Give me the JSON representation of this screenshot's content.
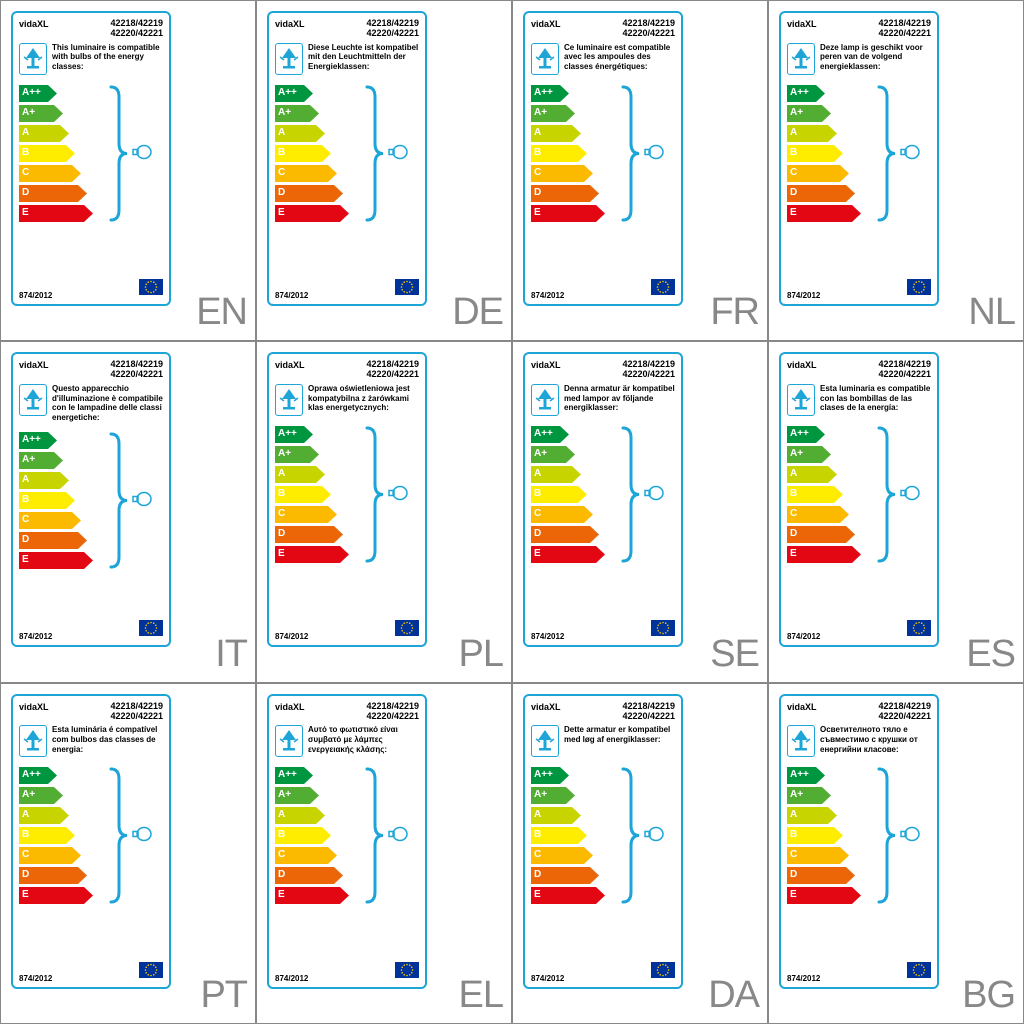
{
  "brand": "vidaXL",
  "product_codes": [
    "42218/42219",
    "42220/42221"
  ],
  "regulation": "874/2012",
  "border_color": "#1ea5d8",
  "lang_color": "#888888",
  "flag_bg": "#003399",
  "flag_star": "#ffcc00",
  "energy_classes": [
    {
      "code": "A++",
      "width": 38,
      "color": "#009640"
    },
    {
      "code": "A+",
      "width": 44,
      "color": "#52ae32"
    },
    {
      "code": "A",
      "width": 50,
      "color": "#c8d400"
    },
    {
      "code": "B",
      "width": 56,
      "color": "#ffed00"
    },
    {
      "code": "C",
      "width": 62,
      "color": "#fbba00"
    },
    {
      "code": "D",
      "width": 68,
      "color": "#ec6608"
    },
    {
      "code": "E",
      "width": 74,
      "color": "#e30613"
    }
  ],
  "labels": [
    {
      "lang": "EN",
      "text": "This luminaire is compatible with bulbs of the energy classes:"
    },
    {
      "lang": "DE",
      "text": "Diese Leuchte ist kompatibel mit den Leuchtmitteln der Energieklassen:"
    },
    {
      "lang": "FR",
      "text": "Ce luminaire est compatible avec les ampoules des classes énergétiques:"
    },
    {
      "lang": "NL",
      "text": "Deze lamp is geschikt voor peren van de volgend energieklassen:"
    },
    {
      "lang": "IT",
      "text": "Questo apparecchio d'illuminazione è compatibile con le lampadine delle classi energetiche:"
    },
    {
      "lang": "PL",
      "text": "Oprawa oświetleniowa jest kompatybilna z żarówkami klas energetycznych:"
    },
    {
      "lang": "SE",
      "text": "Denna armatur är kompatibel med lampor av följande energiklasser:"
    },
    {
      "lang": "ES",
      "text": "Esta luminaria es compatible con las bombillas de las clases de la energía:"
    },
    {
      "lang": "PT",
      "text": "Esta luminária é compatível com bulbos das classes de energia:"
    },
    {
      "lang": "EL",
      "text": "Αυτό το φωτιστικό είναι συμβατό με λάμπες ενεργειακής κλάσης:"
    },
    {
      "lang": "DA",
      "text": "Dette armatur er kompatibel med løg af energiklasser:"
    },
    {
      "lang": "BG",
      "text": "Осветителното тяло е съвместимо с крушки от енергийни класове:"
    }
  ]
}
